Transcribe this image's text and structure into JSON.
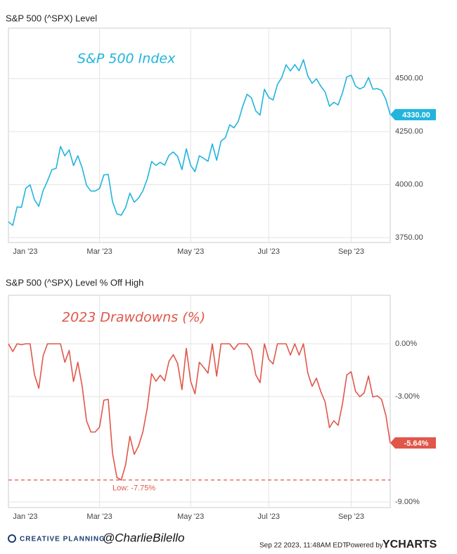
{
  "chart_data": [
    {
      "type": "line",
      "title": "S&P 500 (^SPX) Level",
      "subtitle": "S&P 500 Index",
      "color": "#22b4dc",
      "categories": [
        "Jan '23",
        null,
        null,
        null,
        null,
        null,
        null,
        null,
        null,
        null,
        null,
        null,
        null,
        null,
        null,
        null,
        null,
        null,
        null,
        null,
        null,
        "Mar '23",
        null,
        null,
        null,
        null,
        null,
        null,
        null,
        null,
        null,
        null,
        null,
        null,
        null,
        null,
        null,
        null,
        null,
        null,
        null,
        null,
        "May '23",
        null,
        null,
        null,
        null,
        null,
        null,
        null,
        null,
        null,
        null,
        null,
        null,
        null,
        null,
        null,
        null,
        null,
        "Jul '23",
        null,
        null,
        null,
        null,
        null,
        null,
        null,
        null,
        null,
        null,
        null,
        null,
        null,
        null,
        null,
        null,
        null,
        null,
        "Sep '23",
        null,
        null,
        null,
        null,
        null,
        null,
        null,
        null,
        null
      ],
      "values": [
        3825,
        3808,
        3895,
        3893,
        3983,
        3999,
        3929,
        3898,
        3972,
        4017,
        4070,
        4077,
        4180,
        4136,
        4164,
        4090,
        4136,
        4079,
        3997,
        3970,
        3970,
        3982,
        4046,
        4048,
        3919,
        3862,
        3856,
        3892,
        3960,
        3917,
        3937,
        3971,
        4027,
        4109,
        4091,
        4105,
        4092,
        4138,
        4154,
        4133,
        4071,
        4169,
        4091,
        4061,
        4136,
        4124,
        4110,
        4192,
        4115,
        4205,
        4221,
        4282,
        4268,
        4299,
        4369,
        4426,
        4410,
        4348,
        4328,
        4450,
        4411,
        4399,
        4472,
        4505,
        4565,
        4536,
        4566,
        4537,
        4589,
        4513,
        4478,
        4499,
        4464,
        4437,
        4370,
        4388,
        4376,
        4433,
        4508,
        4516,
        4465,
        4451,
        4461,
        4505,
        4450,
        4453,
        4444,
        4402,
        4330
      ],
      "value_labels": [
        null,
        null,
        null,
        null,
        null,
        null,
        null,
        null,
        null,
        null,
        null,
        null,
        null,
        null,
        null,
        null,
        null,
        null,
        null,
        null,
        null,
        null,
        null,
        null,
        null,
        null,
        null,
        null,
        null,
        null,
        null,
        null,
        null,
        null,
        null,
        null,
        null,
        null,
        null,
        null,
        null,
        null,
        null,
        null,
        null,
        null,
        null,
        null,
        null,
        null,
        null,
        null,
        null,
        null,
        null,
        null,
        null,
        null,
        null,
        null,
        null,
        null,
        null,
        null,
        null,
        null,
        null,
        null,
        null,
        null,
        null,
        null,
        null,
        null,
        null,
        null,
        null,
        null,
        null,
        null,
        null,
        null,
        null,
        null,
        null,
        null,
        null,
        null,
        "4330.00"
      ],
      "ylim": [
        3727,
        4738
      ],
      "yticks": [
        {
          "value": 4500,
          "label": "4500.00"
        },
        {
          "value": 4250,
          "label": "4250.00"
        },
        {
          "value": 4000,
          "label": "4000.00"
        },
        {
          "value": 3750,
          "label": "3750.00"
        }
      ],
      "grid": true
    },
    {
      "type": "line",
      "title": "S&P 500 (^SPX) Level % Off High",
      "subtitle": "2023 Drawdowns (%)",
      "color": "#e0574a",
      "categories": [
        "Jan '23",
        null,
        null,
        null,
        null,
        null,
        null,
        null,
        null,
        null,
        null,
        null,
        null,
        null,
        null,
        null,
        null,
        null,
        null,
        null,
        null,
        "Mar '23",
        null,
        null,
        null,
        null,
        null,
        null,
        null,
        null,
        null,
        null,
        null,
        null,
        null,
        null,
        null,
        null,
        null,
        null,
        null,
        null,
        "May '23",
        null,
        null,
        null,
        null,
        null,
        null,
        null,
        null,
        null,
        null,
        null,
        null,
        null,
        null,
        null,
        null,
        null,
        "Jul '23",
        null,
        null,
        null,
        null,
        null,
        null,
        null,
        null,
        null,
        null,
        null,
        null,
        null,
        null,
        null,
        null,
        null,
        null,
        "Sep '23",
        null,
        null,
        null,
        null,
        null,
        null,
        null,
        null,
        null
      ],
      "values": [
        0,
        -0.44,
        0,
        -0.05,
        0,
        0,
        -1.75,
        -2.53,
        -0.68,
        0,
        0,
        0,
        0,
        -1.05,
        -0.38,
        -2.15,
        -1.05,
        -2.42,
        -4.38,
        -5.02,
        -5.02,
        -4.74,
        -3.21,
        -3.16,
        -6.24,
        -7.61,
        -7.75,
        -6.89,
        -5.26,
        -6.29,
        -5.81,
        -5.0,
        -3.66,
        -1.7,
        -2.13,
        -1.79,
        -2.11,
        -1.0,
        -0.62,
        -1.12,
        -2.61,
        -0.26,
        -2.13,
        -2.85,
        -1.05,
        -1.34,
        -1.67,
        0,
        -1.84,
        0,
        0,
        0,
        -0.33,
        0,
        0,
        0,
        -0.36,
        -1.76,
        -2.21,
        0,
        -0.88,
        -1.15,
        0,
        0,
        0,
        -0.64,
        0,
        -0.64,
        0,
        -1.66,
        -2.42,
        -1.96,
        -2.72,
        -3.31,
        -4.77,
        -4.38,
        -4.64,
        -3.4,
        -1.77,
        -1.59,
        -2.7,
        -3.01,
        -2.79,
        -1.83,
        -3.03,
        -2.96,
        -3.16,
        -4.07,
        -5.64
      ],
      "value_labels": [
        null,
        null,
        null,
        null,
        null,
        null,
        null,
        null,
        null,
        null,
        null,
        null,
        null,
        null,
        null,
        null,
        null,
        null,
        null,
        null,
        null,
        null,
        null,
        null,
        null,
        null,
        null,
        null,
        null,
        null,
        null,
        null,
        null,
        null,
        null,
        null,
        null,
        null,
        null,
        null,
        null,
        null,
        null,
        null,
        null,
        null,
        null,
        null,
        null,
        null,
        null,
        null,
        null,
        null,
        null,
        null,
        null,
        null,
        null,
        null,
        null,
        null,
        null,
        null,
        null,
        null,
        null,
        null,
        null,
        null,
        null,
        null,
        null,
        null,
        null,
        null,
        null,
        null,
        null,
        null,
        null,
        null,
        null,
        null,
        null,
        null,
        null,
        null,
        "-5.64%"
      ],
      "ylim": [
        -9.32,
        2.76
      ],
      "yticks": [
        {
          "value": 0,
          "label": "0.00%"
        },
        {
          "value": -3,
          "label": "-3.00%"
        },
        {
          "value": -9,
          "label": "-9.00%"
        }
      ],
      "grid": true,
      "annotation": {
        "text": "Low: -7.75%",
        "value": -7.75
      }
    }
  ],
  "footer": {
    "brand": "CREATIVE PLANNING",
    "handle": "@CharlieBilello",
    "timestamp": "Sep 22 2023, 11:48AM EDT.",
    "powered": "Powered by",
    "vendor": "YCHARTS"
  }
}
